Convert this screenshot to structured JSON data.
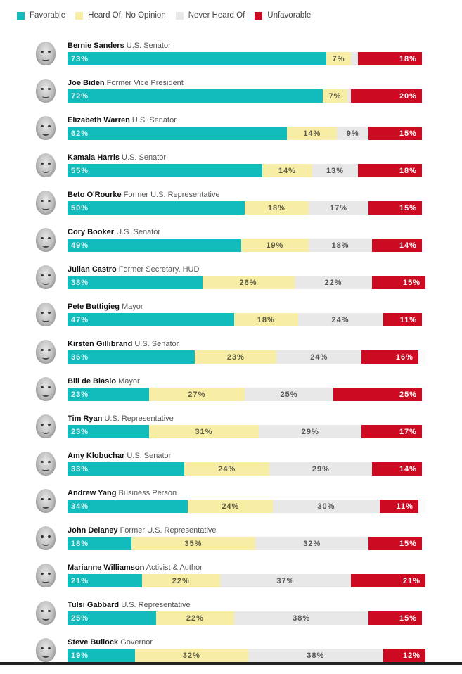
{
  "colors": {
    "favorable": "#13bcbc",
    "neutral": "#f8eda4",
    "never": "#e8e8e8",
    "unfavorable": "#cc0a21"
  },
  "legend": [
    {
      "key": "favorable",
      "label": "Favorable"
    },
    {
      "key": "neutral",
      "label": "Heard Of, No Opinion"
    },
    {
      "key": "never",
      "label": "Never Heard Of"
    },
    {
      "key": "unfavorable",
      "label": "Unfavorable"
    }
  ],
  "chart_data": {
    "type": "bar",
    "orientation": "horizontal-stacked",
    "title": "",
    "xlabel": "",
    "ylabel": "",
    "unit": "%",
    "series_names": [
      "Favorable",
      "Heard Of, No Opinion",
      "Never Heard Of",
      "Unfavorable"
    ],
    "legend_position": "top-left",
    "categories": [
      "Bernie Sanders",
      "Joe Biden",
      "Elizabeth Warren",
      "Kamala Harris",
      "Beto O'Rourke",
      "Cory Booker",
      "Julian Castro",
      "Pete Buttigieg",
      "Kirsten Gillibrand",
      "Bill de Blasio",
      "Tim Ryan",
      "Amy Klobuchar",
      "Andrew Yang",
      "John Delaney",
      "Marianne Williamson",
      "Tulsi Gabbard",
      "Steve Bullock"
    ],
    "rows": [
      {
        "name": "Bernie Sanders",
        "role": "U.S. Senator",
        "favorable": 73,
        "neutral": 7,
        "never": 2,
        "unfavorable": 18,
        "never_label": ""
      },
      {
        "name": "Joe Biden",
        "role": "Former Vice President",
        "favorable": 72,
        "neutral": 7,
        "never": 1,
        "unfavorable": 20,
        "never_label": ""
      },
      {
        "name": "Elizabeth Warren",
        "role": "U.S. Senator",
        "favorable": 62,
        "neutral": 14,
        "never": 9,
        "unfavorable": 15
      },
      {
        "name": "Kamala Harris",
        "role": "U.S. Senator",
        "favorable": 55,
        "neutral": 14,
        "never": 13,
        "unfavorable": 18
      },
      {
        "name": "Beto O'Rourke",
        "role": "Former U.S. Representative",
        "favorable": 50,
        "neutral": 18,
        "never": 17,
        "unfavorable": 15
      },
      {
        "name": "Cory Booker",
        "role": "U.S. Senator",
        "favorable": 49,
        "neutral": 19,
        "never": 18,
        "unfavorable": 14
      },
      {
        "name": "Julian Castro",
        "role": "Former Secretary, HUD",
        "favorable": 38,
        "neutral": 26,
        "never": 22,
        "unfavorable": 15
      },
      {
        "name": "Pete Buttigieg",
        "role": "Mayor",
        "favorable": 47,
        "neutral": 18,
        "never": 24,
        "unfavorable": 11
      },
      {
        "name": "Kirsten Gillibrand",
        "role": "U.S. Senator",
        "favorable": 36,
        "neutral": 23,
        "never": 24,
        "unfavorable": 16
      },
      {
        "name": "Bill de Blasio",
        "role": "Mayor",
        "favorable": 23,
        "neutral": 27,
        "never": 25,
        "unfavorable": 25
      },
      {
        "name": "Tim Ryan",
        "role": "U.S. Representative",
        "favorable": 23,
        "neutral": 31,
        "never": 29,
        "unfavorable": 17
      },
      {
        "name": "Amy Klobuchar",
        "role": "U.S. Senator",
        "favorable": 33,
        "neutral": 24,
        "never": 29,
        "unfavorable": 14
      },
      {
        "name": "Andrew Yang",
        "role": "Business Person",
        "favorable": 34,
        "neutral": 24,
        "never": 30,
        "unfavorable": 11
      },
      {
        "name": "John Delaney",
        "role": "Former U.S. Representative",
        "favorable": 18,
        "neutral": 35,
        "never": 32,
        "unfavorable": 15
      },
      {
        "name": "Marianne Williamson",
        "role": "Activist & Author",
        "favorable": 21,
        "neutral": 22,
        "never": 37,
        "unfavorable": 21
      },
      {
        "name": "Tulsi Gabbard",
        "role": "U.S. Representative",
        "favorable": 25,
        "neutral": 22,
        "never": 38,
        "unfavorable": 15
      },
      {
        "name": "Steve Bullock",
        "role": "Governor",
        "favorable": 19,
        "neutral": 32,
        "never": 38,
        "unfavorable": 12
      }
    ],
    "xlim": [
      0,
      100
    ]
  }
}
